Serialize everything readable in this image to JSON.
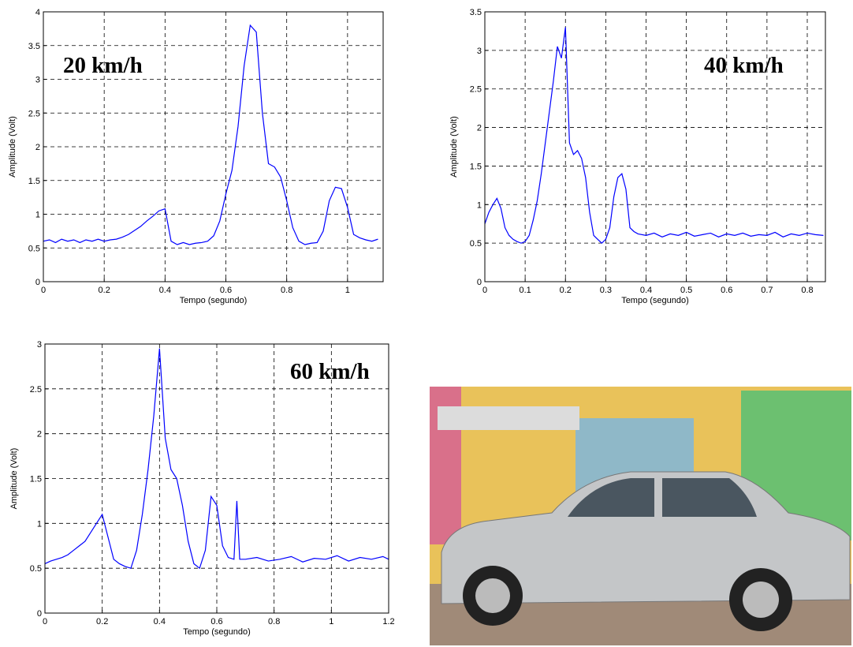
{
  "chart_data": [
    {
      "type": "line",
      "annotation": "20 km/h",
      "xlabel": "Tempo (segundo)",
      "ylabel": "Amplitude (Volt)",
      "color": "#0000ff",
      "grid": true,
      "xlim": [
        0,
        1.117
      ],
      "ylim": [
        0,
        4
      ],
      "xticks": [
        0,
        0.2,
        0.4,
        0.6,
        0.8,
        1
      ],
      "yticks": [
        0,
        0.5,
        1,
        1.5,
        2,
        2.5,
        3,
        3.5,
        4
      ],
      "x": [
        0,
        0.02,
        0.04,
        0.06,
        0.08,
        0.1,
        0.12,
        0.14,
        0.16,
        0.18,
        0.2,
        0.22,
        0.24,
        0.26,
        0.28,
        0.3,
        0.32,
        0.34,
        0.36,
        0.38,
        0.4,
        0.42,
        0.44,
        0.46,
        0.48,
        0.5,
        0.52,
        0.54,
        0.56,
        0.58,
        0.6,
        0.62,
        0.64,
        0.66,
        0.68,
        0.7,
        0.72,
        0.74,
        0.76,
        0.78,
        0.8,
        0.82,
        0.84,
        0.86,
        0.88,
        0.9,
        0.92,
        0.94,
        0.96,
        0.98,
        1.0,
        1.02,
        1.04,
        1.06,
        1.08,
        1.1
      ],
      "values": [
        0.6,
        0.62,
        0.58,
        0.63,
        0.6,
        0.62,
        0.58,
        0.62,
        0.6,
        0.63,
        0.6,
        0.62,
        0.63,
        0.66,
        0.7,
        0.76,
        0.82,
        0.9,
        0.97,
        1.05,
        1.08,
        0.6,
        0.55,
        0.58,
        0.55,
        0.57,
        0.58,
        0.6,
        0.68,
        0.9,
        1.3,
        1.65,
        2.3,
        3.2,
        3.8,
        3.7,
        2.5,
        1.75,
        1.7,
        1.55,
        1.2,
        0.8,
        0.6,
        0.55,
        0.57,
        0.58,
        0.75,
        1.2,
        1.4,
        1.38,
        1.1,
        0.7,
        0.65,
        0.62,
        0.6,
        0.63
      ]
    },
    {
      "type": "line",
      "annotation": "40 km/h",
      "xlabel": "Tempo (segundo)",
      "ylabel": "Amplitude (Volt)",
      "color": "#0000ff",
      "grid": true,
      "xlim": [
        0,
        0.845
      ],
      "ylim": [
        0,
        3.5
      ],
      "xticks": [
        0,
        0.1,
        0.2,
        0.3,
        0.4,
        0.5,
        0.6,
        0.7,
        0.8
      ],
      "yticks": [
        0,
        0.5,
        1,
        1.5,
        2,
        2.5,
        3,
        3.5
      ],
      "x": [
        0,
        0.01,
        0.02,
        0.03,
        0.04,
        0.05,
        0.06,
        0.07,
        0.08,
        0.09,
        0.1,
        0.11,
        0.12,
        0.13,
        0.14,
        0.15,
        0.16,
        0.17,
        0.18,
        0.19,
        0.2,
        0.21,
        0.22,
        0.23,
        0.24,
        0.25,
        0.26,
        0.27,
        0.28,
        0.29,
        0.3,
        0.31,
        0.32,
        0.33,
        0.34,
        0.35,
        0.36,
        0.37,
        0.38,
        0.4,
        0.42,
        0.44,
        0.46,
        0.48,
        0.5,
        0.52,
        0.54,
        0.56,
        0.58,
        0.6,
        0.62,
        0.64,
        0.66,
        0.68,
        0.7,
        0.72,
        0.74,
        0.76,
        0.78,
        0.8,
        0.82,
        0.84
      ],
      "values": [
        0.75,
        0.9,
        1.0,
        1.08,
        0.95,
        0.7,
        0.6,
        0.55,
        0.52,
        0.5,
        0.52,
        0.6,
        0.8,
        1.05,
        1.4,
        1.8,
        2.2,
        2.6,
        3.05,
        2.9,
        3.3,
        1.8,
        1.65,
        1.7,
        1.6,
        1.35,
        0.9,
        0.6,
        0.55,
        0.5,
        0.55,
        0.7,
        1.1,
        1.35,
        1.4,
        1.2,
        0.7,
        0.65,
        0.62,
        0.6,
        0.63,
        0.58,
        0.62,
        0.6,
        0.64,
        0.59,
        0.61,
        0.63,
        0.58,
        0.62,
        0.6,
        0.63,
        0.59,
        0.61,
        0.6,
        0.64,
        0.58,
        0.62,
        0.6,
        0.63,
        0.61,
        0.6
      ]
    },
    {
      "type": "line",
      "annotation": "60 km/h",
      "xlabel": "Tempo (segundo)",
      "ylabel": "Amplitude (Volt)",
      "color": "#0000ff",
      "grid": true,
      "xlim": [
        0,
        1.2
      ],
      "ylim": [
        0,
        3
      ],
      "xticks": [
        0,
        0.2,
        0.4,
        0.6,
        0.8,
        1,
        1.2
      ],
      "yticks": [
        0,
        0.5,
        1,
        1.5,
        2,
        2.5,
        3
      ],
      "x": [
        0,
        0.02,
        0.04,
        0.06,
        0.08,
        0.1,
        0.12,
        0.14,
        0.16,
        0.18,
        0.2,
        0.22,
        0.24,
        0.26,
        0.28,
        0.3,
        0.32,
        0.34,
        0.36,
        0.38,
        0.4,
        0.42,
        0.44,
        0.46,
        0.48,
        0.5,
        0.52,
        0.54,
        0.56,
        0.58,
        0.6,
        0.62,
        0.64,
        0.66,
        0.67,
        0.68,
        0.7,
        0.74,
        0.78,
        0.82,
        0.86,
        0.9,
        0.94,
        0.98,
        1.02,
        1.06,
        1.1,
        1.14,
        1.18,
        1.2
      ],
      "values": [
        0.55,
        0.58,
        0.6,
        0.62,
        0.65,
        0.7,
        0.75,
        0.8,
        0.9,
        1.0,
        1.1,
        0.85,
        0.6,
        0.55,
        0.52,
        0.5,
        0.7,
        1.1,
        1.6,
        2.2,
        2.95,
        1.95,
        1.6,
        1.5,
        1.2,
        0.8,
        0.55,
        0.5,
        0.7,
        1.3,
        1.2,
        0.75,
        0.62,
        0.6,
        1.25,
        0.6,
        0.6,
        0.62,
        0.58,
        0.6,
        0.63,
        0.57,
        0.61,
        0.6,
        0.64,
        0.58,
        0.62,
        0.6,
        0.63,
        0.6
      ]
    }
  ]
}
